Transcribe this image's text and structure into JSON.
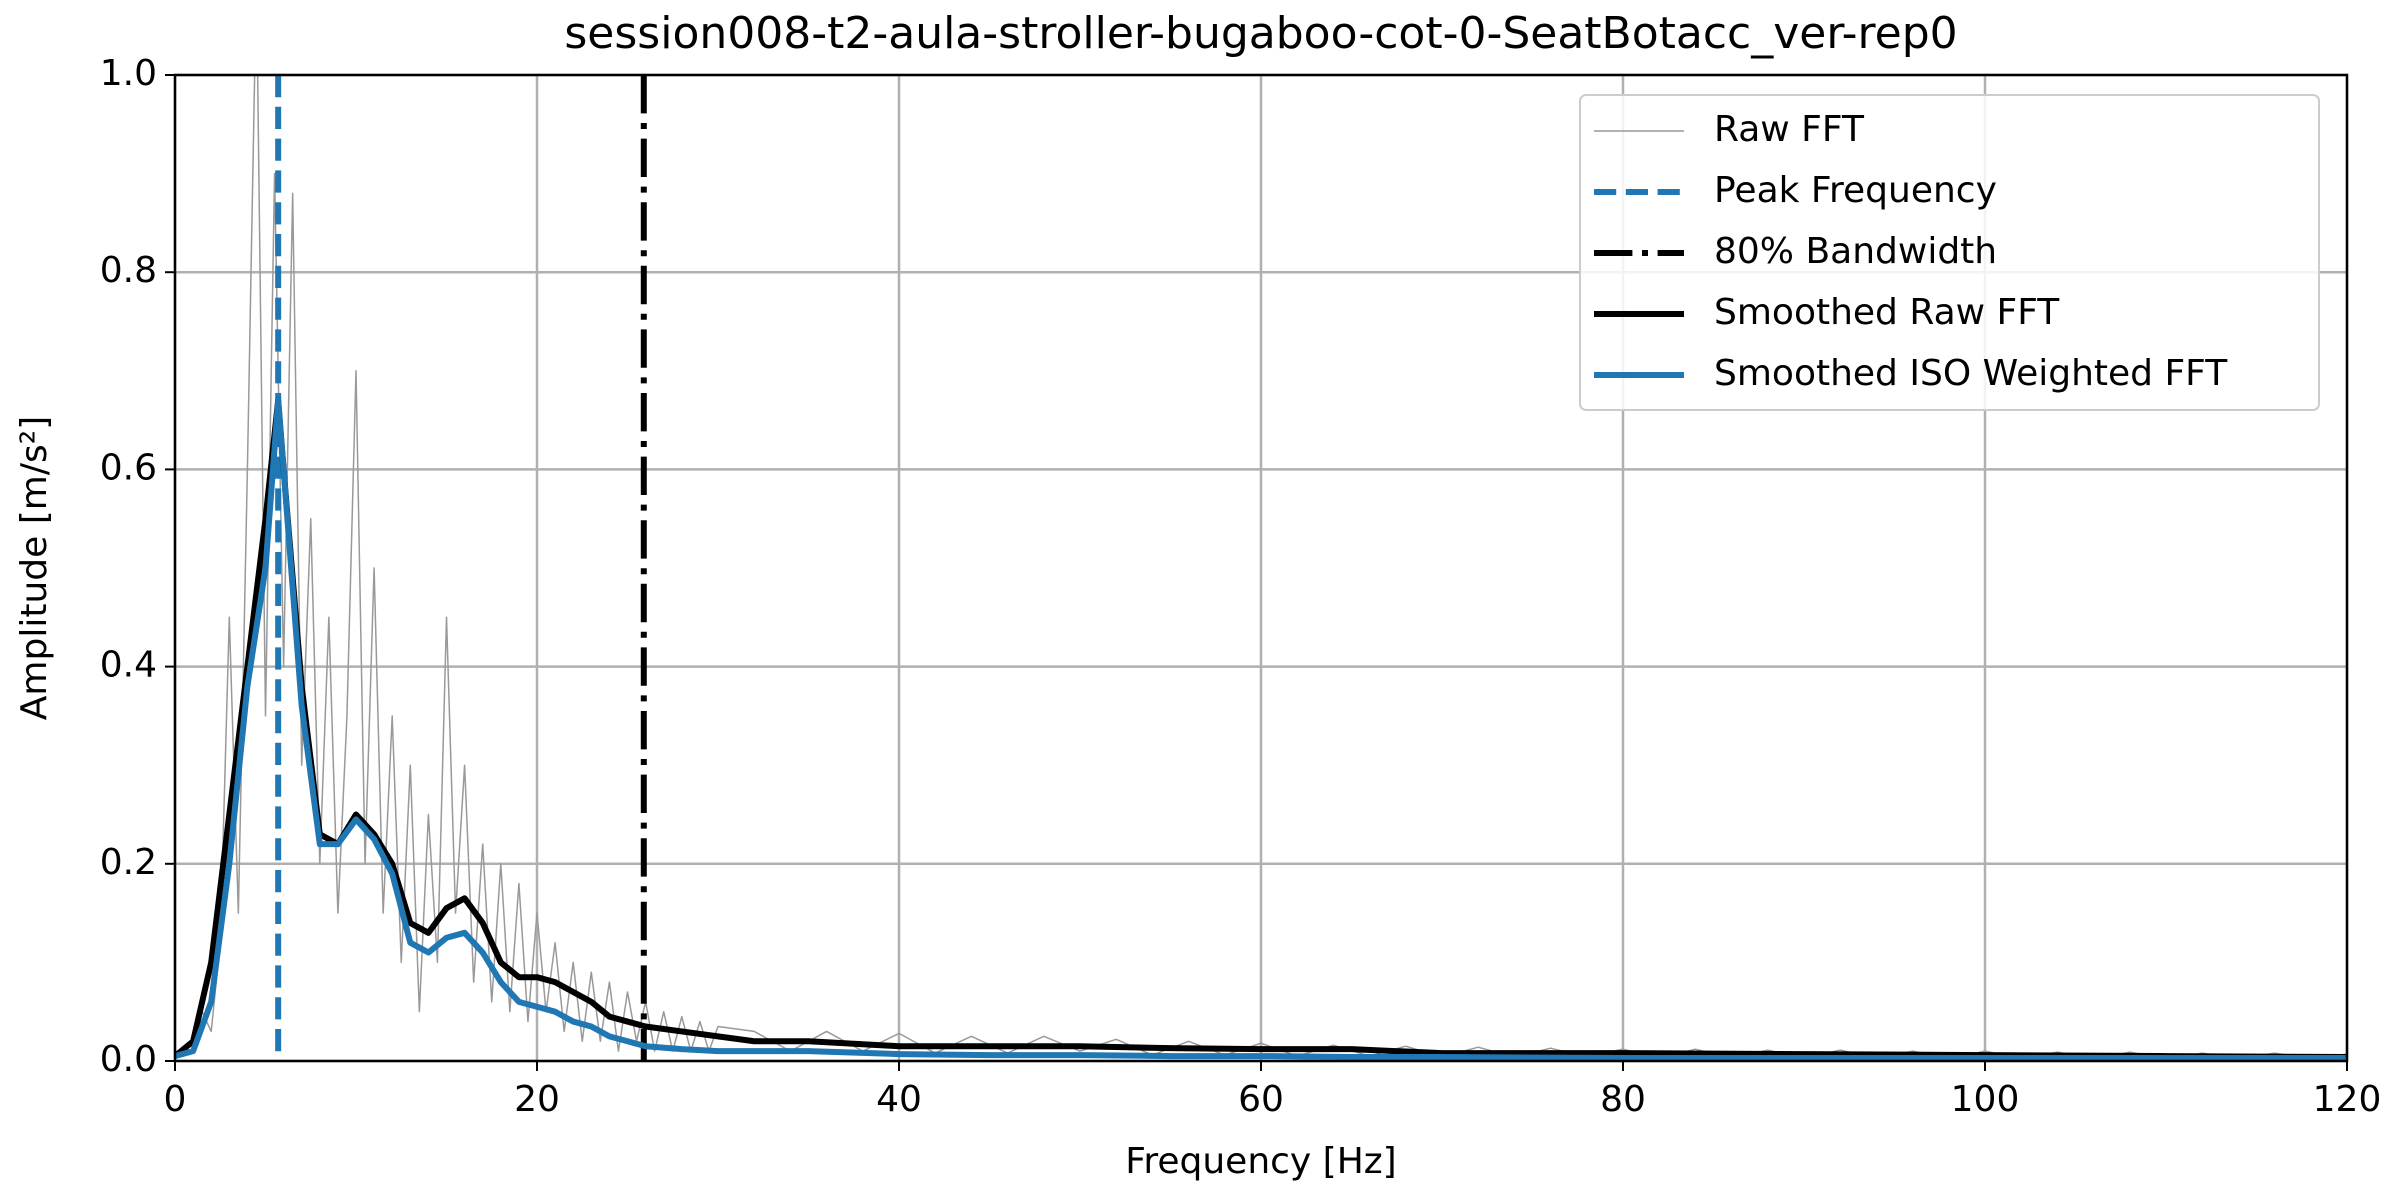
{
  "chart_data": {
    "type": "line",
    "title": "session008-t2-aula-stroller-bugaboo-cot-0-SeatBotacc_ver-rep0",
    "x_label": "Frequency [Hz]",
    "y_label": "Amplitude [m/s²]",
    "xlim": [
      0,
      120
    ],
    "ylim": [
      0,
      1
    ],
    "xticks": [
      0,
      20,
      40,
      60,
      80,
      100,
      120
    ],
    "yticks": [
      {
        "value": 0,
        "label": "0.0"
      },
      0.2,
      0.4,
      0.6,
      0.8,
      {
        "value": 1,
        "label": "1.0"
      }
    ],
    "grid": true,
    "legend": "upper right",
    "series": [
      {
        "name": "Raw FFT",
        "color": "#999999",
        "width": 1.5,
        "style": "solid",
        "x": [
          0,
          0.5,
          1,
          1.5,
          2,
          2.5,
          3,
          3.5,
          4,
          4.5,
          5,
          5.5,
          6,
          6.5,
          7,
          7.5,
          8,
          8.5,
          9,
          9.5,
          10,
          10.5,
          11,
          11.5,
          12,
          12.5,
          13,
          13.5,
          14,
          14.5,
          15,
          15.5,
          16,
          16.5,
          17,
          17.5,
          18,
          18.5,
          19,
          19.5,
          20,
          20.5,
          21,
          21.5,
          22,
          22.5,
          23,
          23.5,
          24,
          24.5,
          25,
          25.5,
          26,
          26.5,
          27,
          27.5,
          28,
          28.5,
          29,
          29.5,
          30,
          32,
          34,
          36,
          38,
          40,
          42,
          44,
          46,
          48,
          50,
          52,
          54,
          56,
          58,
          60,
          62,
          64,
          66,
          68,
          70,
          72,
          74,
          76,
          78,
          80,
          82,
          84,
          86,
          88,
          90,
          92,
          94,
          96,
          98,
          100,
          102,
          104,
          106,
          108,
          110,
          112,
          114,
          116,
          118,
          120
        ],
        "values": [
          0.005,
          0.01,
          0.02,
          0.05,
          0.03,
          0.12,
          0.45,
          0.15,
          0.6,
          1.1,
          0.35,
          0.9,
          0.4,
          0.88,
          0.3,
          0.55,
          0.2,
          0.45,
          0.15,
          0.35,
          0.7,
          0.2,
          0.5,
          0.15,
          0.35,
          0.1,
          0.3,
          0.05,
          0.25,
          0.1,
          0.45,
          0.15,
          0.3,
          0.08,
          0.22,
          0.06,
          0.2,
          0.05,
          0.18,
          0.04,
          0.15,
          0.05,
          0.12,
          0.03,
          0.1,
          0.02,
          0.09,
          0.02,
          0.08,
          0.01,
          0.07,
          0.02,
          0.06,
          0.01,
          0.05,
          0.01,
          0.045,
          0.01,
          0.04,
          0.01,
          0.035,
          0.03,
          0.01,
          0.03,
          0.01,
          0.028,
          0.008,
          0.025,
          0.008,
          0.025,
          0.01,
          0.022,
          0.006,
          0.02,
          0.006,
          0.018,
          0.005,
          0.016,
          0.005,
          0.015,
          0.004,
          0.014,
          0.004,
          0.013,
          0.004,
          0.012,
          0.003,
          0.012,
          0.003,
          0.011,
          0.003,
          0.011,
          0.003,
          0.01,
          0.002,
          0.01,
          0.002,
          0.009,
          0.002,
          0.009,
          0.002,
          0.008,
          0.002,
          0.008,
          0.002,
          0.007
        ]
      },
      {
        "name": "Peak Frequency",
        "color": "#1f77b4",
        "width": 6,
        "style": "dashed",
        "x": 5.7
      },
      {
        "name": "80% Bandwidth",
        "color": "#000000",
        "width": 6,
        "style": "dashdot",
        "x": 25.9
      },
      {
        "name": "Smoothed Raw FFT",
        "color": "#000000",
        "width": 6,
        "style": "solid",
        "x": [
          0,
          1,
          2,
          3,
          4,
          5,
          5.7,
          6,
          7,
          8,
          9,
          10,
          11,
          12,
          13,
          14,
          15,
          16,
          17,
          18,
          19,
          20,
          21,
          22,
          23,
          24,
          25,
          26,
          28,
          30,
          32,
          35,
          40,
          45,
          50,
          55,
          60,
          65,
          70,
          80,
          90,
          100,
          110,
          120
        ],
        "values": [
          0.005,
          0.02,
          0.1,
          0.25,
          0.4,
          0.55,
          0.67,
          0.6,
          0.38,
          0.23,
          0.22,
          0.25,
          0.23,
          0.2,
          0.14,
          0.13,
          0.155,
          0.165,
          0.14,
          0.1,
          0.085,
          0.085,
          0.08,
          0.07,
          0.06,
          0.045,
          0.04,
          0.035,
          0.03,
          0.025,
          0.02,
          0.02,
          0.015,
          0.015,
          0.015,
          0.013,
          0.012,
          0.012,
          0.008,
          0.008,
          0.007,
          0.006,
          0.005,
          0.004
        ]
      },
      {
        "name": "Smoothed ISO Weighted FFT",
        "color": "#1f77b4",
        "width": 6,
        "style": "solid",
        "x": [
          0,
          1,
          2,
          3,
          4,
          5,
          5.7,
          6,
          7,
          8,
          9,
          10,
          11,
          12,
          13,
          14,
          15,
          16,
          17,
          18,
          19,
          20,
          21,
          22,
          23,
          24,
          25,
          26,
          28,
          30,
          32,
          35,
          40,
          45,
          50,
          55,
          60,
          65,
          70,
          80,
          90,
          100,
          110,
          120
        ],
        "values": [
          0.005,
          0.01,
          0.06,
          0.2,
          0.38,
          0.5,
          0.67,
          0.6,
          0.36,
          0.22,
          0.22,
          0.245,
          0.225,
          0.19,
          0.12,
          0.11,
          0.125,
          0.13,
          0.11,
          0.08,
          0.06,
          0.055,
          0.05,
          0.04,
          0.035,
          0.025,
          0.02,
          0.015,
          0.012,
          0.01,
          0.01,
          0.01,
          0.007,
          0.006,
          0.006,
          0.005,
          0.005,
          0.004,
          0.004,
          0.003,
          0.003,
          0.003,
          0.003,
          0.003
        ]
      }
    ]
  }
}
